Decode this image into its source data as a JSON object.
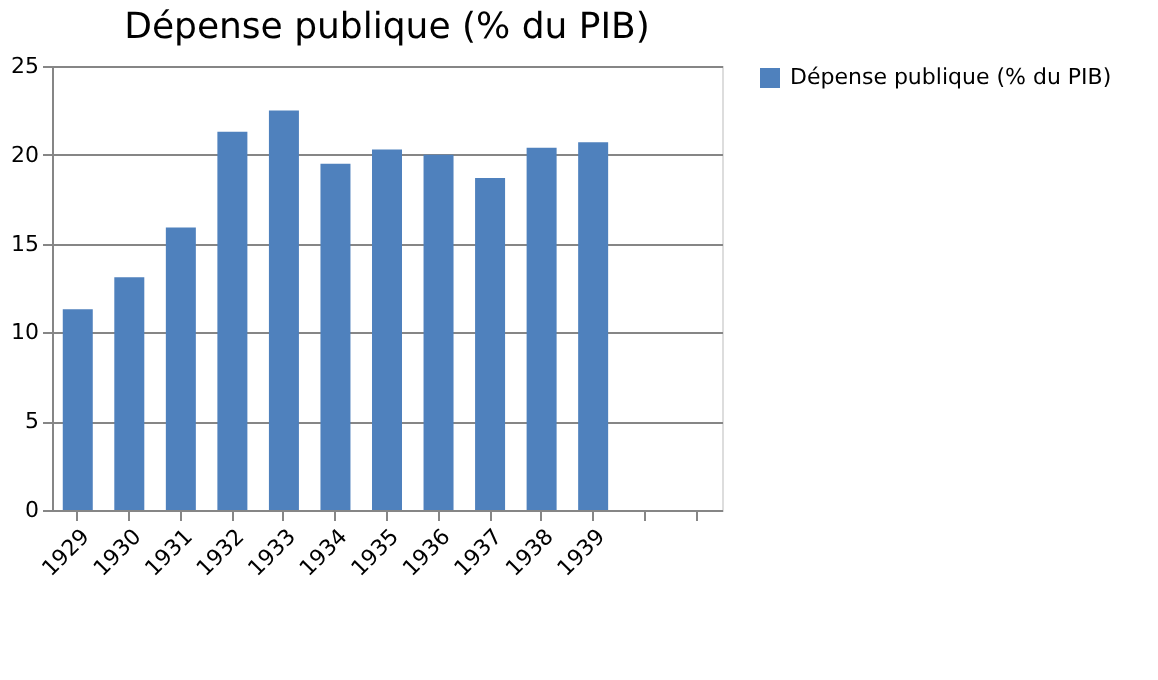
{
  "chart_data": {
    "type": "bar",
    "title": "Dépense publique (% du PIB)",
    "categories": [
      "1929",
      "1930",
      "1931",
      "1932",
      "1933",
      "1934",
      "1935",
      "1936",
      "1937",
      "1938",
      "1939",
      null,
      null
    ],
    "series": [
      {
        "name": "Dépense publique (% du PIB)",
        "color": "#4f81bd",
        "values": [
          11.3,
          13.1,
          15.9,
          21.3,
          22.5,
          19.5,
          20.3,
          20.0,
          18.7,
          20.4,
          20.7,
          null,
          null
        ]
      }
    ],
    "ylim": [
      0,
      25
    ],
    "yticks": [
      0,
      5,
      10,
      15,
      20,
      25
    ],
    "grid": "y",
    "legend": "right"
  }
}
